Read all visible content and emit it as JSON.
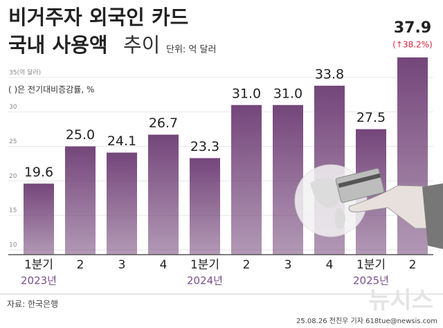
{
  "chart_data": {
    "type": "bar",
    "title": "비거주자 외국인 카드",
    "title_line2": "국내 사용액",
    "title_suffix": "추이",
    "unit": "단위: 억 달러",
    "note": "( )은 전기대비증감률, %",
    "categories": [
      "1분기",
      "2",
      "3",
      "4",
      "1분기",
      "2",
      "3",
      "4",
      "1분기",
      "2"
    ],
    "year_labels": [
      "2023년",
      null,
      null,
      null,
      "2024년",
      null,
      null,
      null,
      "2025년",
      null
    ],
    "values": [
      19.6,
      25.0,
      24.1,
      26.7,
      23.3,
      31.0,
      31.0,
      33.8,
      27.5,
      37.9
    ],
    "value_labels": [
      "19.6",
      "25.0",
      "24.1",
      "26.7",
      "23.3",
      "31.0",
      "31.0",
      "33.8",
      "27.5",
      "37.9"
    ],
    "annotation": "(↑38.2%)",
    "color": "#74467a",
    "ylim": [
      9.3,
      38
    ],
    "yticks": [
      10,
      15,
      20,
      25,
      30,
      {
        "value": 35,
        "label": "35(억 달러)"
      }
    ],
    "grid": true,
    "source": "자료: 한국은행",
    "credit": "25.08.26 전진우 기자 618tue@newsis.com",
    "watermark": "뉴시스"
  }
}
